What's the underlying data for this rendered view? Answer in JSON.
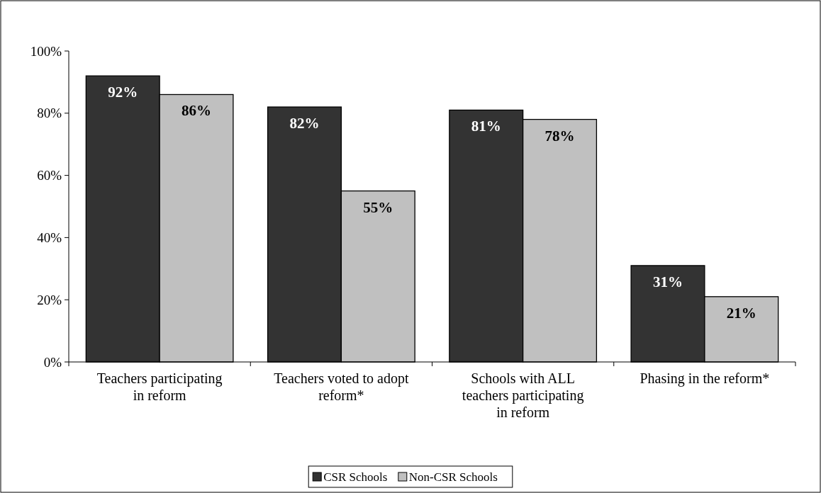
{
  "chart_data": {
    "type": "bar",
    "categories": [
      "Teachers participating in reform",
      "Teachers voted to adopt reform*",
      "Schools with ALL teachers participating in reform",
      "Phasing in the reform*"
    ],
    "series": [
      {
        "name": "CSR Schools",
        "color": "#333333",
        "values": [
          92,
          82,
          81,
          31
        ],
        "value_labels": [
          "92%",
          "82%",
          "81%",
          "31%"
        ]
      },
      {
        "name": "Non-CSR Schools",
        "color": "#c0c0c0",
        "values": [
          86,
          55,
          78,
          21
        ],
        "value_labels": [
          "86%",
          "55%",
          "78%",
          "21%"
        ]
      }
    ],
    "ylim": [
      0,
      100
    ],
    "yticks": [
      {
        "value": 0,
        "label": "0%"
      },
      {
        "value": 20,
        "label": "20%"
      },
      {
        "value": 40,
        "label": "40%"
      },
      {
        "value": 60,
        "label": "60%"
      },
      {
        "value": 80,
        "label": "80%"
      },
      {
        "value": 100,
        "label": "100%"
      }
    ],
    "grid": false,
    "legend": "bottom"
  }
}
